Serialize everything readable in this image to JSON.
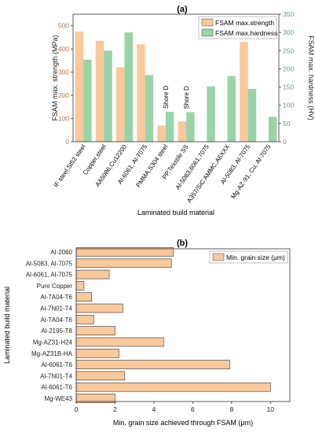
{
  "chart_data": [
    {
      "panel_label": "(a)",
      "type": "bar",
      "categories": [
        "IF steel,St52 steel",
        "Copper,steel",
        "AA5086,Cu12200",
        "Al-6061, Al-7075",
        "PMMA,S304 steel",
        "PP,Texstile SS",
        "Al-5083,6061,7075",
        "A357/SiC AMMC,A6XXX",
        "Al-5083, Al-7075",
        "Mg-AZ-91, Cu, Al-7075"
      ],
      "series": [
        {
          "name": "FSAM max.strength",
          "axis": "left",
          "color": "#f9c89b",
          "values": [
            475,
            435,
            320,
            420,
            70,
            88,
            null,
            null,
            430,
            null
          ]
        },
        {
          "name": "FSAM max.hardness",
          "axis": "right",
          "color": "#99d4a8",
          "values": [
            225,
            250,
            300,
            183,
            82,
            81,
            152,
            180,
            145,
            68
          ]
        }
      ],
      "annotations": [
        {
          "category_index": 4,
          "text": "Shore D"
        },
        {
          "category_index": 5,
          "text": "Shore D"
        }
      ],
      "xlabel": "Laminated build material",
      "ylabel_left": "FSAM max. strength (MPa)",
      "ylabel_right": "FSAM max. hardness (HV)",
      "ylim_left": [
        0,
        550
      ],
      "yticks_left": [
        0,
        100,
        200,
        300,
        400,
        500
      ],
      "ylim_right": [
        0,
        350
      ],
      "yticks_right": [
        0,
        50,
        100,
        150,
        200,
        250,
        300,
        350
      ],
      "left_axis_color": "#b07a50",
      "right_axis_color": "#5aa56e",
      "legend": "top-right",
      "grid": false
    },
    {
      "panel_label": "(b)",
      "type": "bar",
      "orientation": "horizontal",
      "categories": [
        "Al-2060",
        "Al-5083, Al-7075",
        "Al-6061, Al-7075",
        "Pure Copper",
        "Al-7A04-T6",
        "Al-7N01-T4",
        "Al-7A04-T6",
        "Al-2195-T8",
        "Mg-AZ31-H24",
        "Mg-AZ31B-HA",
        "Al-6061-T6",
        "Al-7N01-T4",
        "Al-6061-T6",
        "Mg-WE43"
      ],
      "series": [
        {
          "name": "Min. grain size (μm)",
          "color": "#f9c89b",
          "values": [
            5,
            4.9,
            1.7,
            0.4,
            0.8,
            2.4,
            0.9,
            2,
            4.5,
            2.2,
            7.9,
            2.5,
            10,
            2
          ]
        }
      ],
      "xlabel": "Min. grain size achieved through FSAM (μm)",
      "ylabel": "Laminated build material",
      "xlim": [
        0,
        11
      ],
      "xticks": [
        0,
        2,
        4,
        6,
        8,
        10
      ],
      "legend": "top-right",
      "grid": false
    }
  ]
}
